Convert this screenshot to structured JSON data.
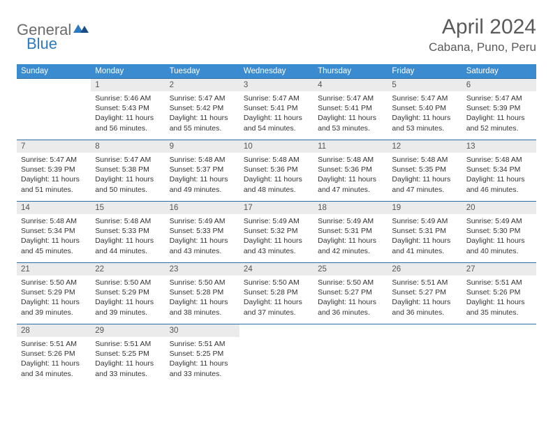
{
  "logo": {
    "part1": "General",
    "part2": "Blue"
  },
  "title": "April 2024",
  "location": "Cabana, Puno, Peru",
  "weekdays": [
    "Sunday",
    "Monday",
    "Tuesday",
    "Wednesday",
    "Thursday",
    "Friday",
    "Saturday"
  ],
  "header_bg": "#3b8bd0",
  "rule_color": "#2b6aa5",
  "daynum_bg": "#ebebeb",
  "weeks": [
    [
      {
        "n": "",
        "lines": []
      },
      {
        "n": "1",
        "lines": [
          "Sunrise: 5:46 AM",
          "Sunset: 5:43 PM",
          "Daylight: 11 hours",
          "and 56 minutes."
        ]
      },
      {
        "n": "2",
        "lines": [
          "Sunrise: 5:47 AM",
          "Sunset: 5:42 PM",
          "Daylight: 11 hours",
          "and 55 minutes."
        ]
      },
      {
        "n": "3",
        "lines": [
          "Sunrise: 5:47 AM",
          "Sunset: 5:41 PM",
          "Daylight: 11 hours",
          "and 54 minutes."
        ]
      },
      {
        "n": "4",
        "lines": [
          "Sunrise: 5:47 AM",
          "Sunset: 5:41 PM",
          "Daylight: 11 hours",
          "and 53 minutes."
        ]
      },
      {
        "n": "5",
        "lines": [
          "Sunrise: 5:47 AM",
          "Sunset: 5:40 PM",
          "Daylight: 11 hours",
          "and 53 minutes."
        ]
      },
      {
        "n": "6",
        "lines": [
          "Sunrise: 5:47 AM",
          "Sunset: 5:39 PM",
          "Daylight: 11 hours",
          "and 52 minutes."
        ]
      }
    ],
    [
      {
        "n": "7",
        "lines": [
          "Sunrise: 5:47 AM",
          "Sunset: 5:39 PM",
          "Daylight: 11 hours",
          "and 51 minutes."
        ]
      },
      {
        "n": "8",
        "lines": [
          "Sunrise: 5:47 AM",
          "Sunset: 5:38 PM",
          "Daylight: 11 hours",
          "and 50 minutes."
        ]
      },
      {
        "n": "9",
        "lines": [
          "Sunrise: 5:48 AM",
          "Sunset: 5:37 PM",
          "Daylight: 11 hours",
          "and 49 minutes."
        ]
      },
      {
        "n": "10",
        "lines": [
          "Sunrise: 5:48 AM",
          "Sunset: 5:36 PM",
          "Daylight: 11 hours",
          "and 48 minutes."
        ]
      },
      {
        "n": "11",
        "lines": [
          "Sunrise: 5:48 AM",
          "Sunset: 5:36 PM",
          "Daylight: 11 hours",
          "and 47 minutes."
        ]
      },
      {
        "n": "12",
        "lines": [
          "Sunrise: 5:48 AM",
          "Sunset: 5:35 PM",
          "Daylight: 11 hours",
          "and 47 minutes."
        ]
      },
      {
        "n": "13",
        "lines": [
          "Sunrise: 5:48 AM",
          "Sunset: 5:34 PM",
          "Daylight: 11 hours",
          "and 46 minutes."
        ]
      }
    ],
    [
      {
        "n": "14",
        "lines": [
          "Sunrise: 5:48 AM",
          "Sunset: 5:34 PM",
          "Daylight: 11 hours",
          "and 45 minutes."
        ]
      },
      {
        "n": "15",
        "lines": [
          "Sunrise: 5:48 AM",
          "Sunset: 5:33 PM",
          "Daylight: 11 hours",
          "and 44 minutes."
        ]
      },
      {
        "n": "16",
        "lines": [
          "Sunrise: 5:49 AM",
          "Sunset: 5:33 PM",
          "Daylight: 11 hours",
          "and 43 minutes."
        ]
      },
      {
        "n": "17",
        "lines": [
          "Sunrise: 5:49 AM",
          "Sunset: 5:32 PM",
          "Daylight: 11 hours",
          "and 43 minutes."
        ]
      },
      {
        "n": "18",
        "lines": [
          "Sunrise: 5:49 AM",
          "Sunset: 5:31 PM",
          "Daylight: 11 hours",
          "and 42 minutes."
        ]
      },
      {
        "n": "19",
        "lines": [
          "Sunrise: 5:49 AM",
          "Sunset: 5:31 PM",
          "Daylight: 11 hours",
          "and 41 minutes."
        ]
      },
      {
        "n": "20",
        "lines": [
          "Sunrise: 5:49 AM",
          "Sunset: 5:30 PM",
          "Daylight: 11 hours",
          "and 40 minutes."
        ]
      }
    ],
    [
      {
        "n": "21",
        "lines": [
          "Sunrise: 5:50 AM",
          "Sunset: 5:29 PM",
          "Daylight: 11 hours",
          "and 39 minutes."
        ]
      },
      {
        "n": "22",
        "lines": [
          "Sunrise: 5:50 AM",
          "Sunset: 5:29 PM",
          "Daylight: 11 hours",
          "and 39 minutes."
        ]
      },
      {
        "n": "23",
        "lines": [
          "Sunrise: 5:50 AM",
          "Sunset: 5:28 PM",
          "Daylight: 11 hours",
          "and 38 minutes."
        ]
      },
      {
        "n": "24",
        "lines": [
          "Sunrise: 5:50 AM",
          "Sunset: 5:28 PM",
          "Daylight: 11 hours",
          "and 37 minutes."
        ]
      },
      {
        "n": "25",
        "lines": [
          "Sunrise: 5:50 AM",
          "Sunset: 5:27 PM",
          "Daylight: 11 hours",
          "and 36 minutes."
        ]
      },
      {
        "n": "26",
        "lines": [
          "Sunrise: 5:51 AM",
          "Sunset: 5:27 PM",
          "Daylight: 11 hours",
          "and 36 minutes."
        ]
      },
      {
        "n": "27",
        "lines": [
          "Sunrise: 5:51 AM",
          "Sunset: 5:26 PM",
          "Daylight: 11 hours",
          "and 35 minutes."
        ]
      }
    ],
    [
      {
        "n": "28",
        "lines": [
          "Sunrise: 5:51 AM",
          "Sunset: 5:26 PM",
          "Daylight: 11 hours",
          "and 34 minutes."
        ]
      },
      {
        "n": "29",
        "lines": [
          "Sunrise: 5:51 AM",
          "Sunset: 5:25 PM",
          "Daylight: 11 hours",
          "and 33 minutes."
        ]
      },
      {
        "n": "30",
        "lines": [
          "Sunrise: 5:51 AM",
          "Sunset: 5:25 PM",
          "Daylight: 11 hours",
          "and 33 minutes."
        ]
      },
      {
        "n": "",
        "lines": []
      },
      {
        "n": "",
        "lines": []
      },
      {
        "n": "",
        "lines": []
      },
      {
        "n": "",
        "lines": []
      }
    ]
  ]
}
